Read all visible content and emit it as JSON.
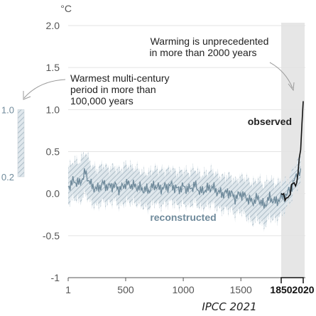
{
  "chart_data": {
    "type": "line",
    "unit": "°C",
    "ylim": [
      -1,
      2
    ],
    "xlim": [
      1,
      2020
    ],
    "y_ticks": [
      "2.0",
      "1.5",
      "1.0",
      "0.5",
      "0.0",
      "-0.5",
      "-1"
    ],
    "y_tick_values": [
      2.0,
      1.5,
      1.0,
      0.5,
      0.0,
      -0.5,
      -1.0
    ],
    "x_ticks": [
      "1",
      "500",
      "1000",
      "1500",
      "1850",
      "2020"
    ],
    "x_tick_values": [
      1,
      500,
      1000,
      1500,
      1850,
      2020
    ],
    "highlight_period": [
      1850,
      2020
    ],
    "annotations": {
      "unprecedented_line1": "Warming is unprecedented",
      "unprecedented_line2": "in more than 2000 years",
      "warmest_line1": "Warmest multi-century",
      "warmest_line2": "period in more than",
      "warmest_line3": "100,000 years"
    },
    "warmest_range": {
      "low_label": "0.2",
      "high_label": "1.0",
      "low": 0.2,
      "high": 1.0
    },
    "series": [
      {
        "name": "reconstructed",
        "x": [
          1,
          50,
          100,
          150,
          200,
          250,
          300,
          350,
          400,
          450,
          500,
          550,
          600,
          650,
          700,
          750,
          800,
          850,
          900,
          950,
          1000,
          1050,
          1100,
          1150,
          1200,
          1250,
          1300,
          1350,
          1400,
          1450,
          1500,
          1550,
          1600,
          1650,
          1700,
          1750,
          1800,
          1850,
          1900,
          1950,
          2000
        ],
        "y": [
          0.08,
          0.15,
          0.12,
          0.25,
          0.1,
          0.05,
          0.12,
          0.08,
          0.1,
          0.05,
          0.12,
          0.1,
          0.08,
          0.05,
          0.04,
          0.1,
          0.06,
          0.08,
          0.1,
          0.05,
          0.08,
          0.05,
          0.1,
          0.02,
          0.05,
          0.08,
          0.02,
          0.0,
          0.02,
          -0.05,
          0.0,
          -0.05,
          -0.1,
          -0.05,
          -0.15,
          -0.05,
          -0.1,
          -0.05,
          0.0,
          0.15,
          0.3
        ],
        "band_low": [
          -0.12,
          -0.05,
          -0.1,
          0.0,
          -0.12,
          -0.15,
          -0.1,
          -0.12,
          -0.08,
          -0.15,
          -0.1,
          -0.1,
          -0.12,
          -0.15,
          -0.18,
          -0.1,
          -0.15,
          -0.12,
          -0.1,
          -0.15,
          -0.12,
          -0.15,
          -0.1,
          -0.18,
          -0.15,
          -0.12,
          -0.18,
          -0.2,
          -0.18,
          -0.25,
          -0.2,
          -0.28,
          -0.35,
          -0.3,
          -0.4,
          -0.28,
          -0.32,
          -0.25,
          -0.15,
          0.0,
          0.15
        ],
        "band_high": [
          0.3,
          0.4,
          0.38,
          0.5,
          0.35,
          0.28,
          0.35,
          0.3,
          0.32,
          0.28,
          0.35,
          0.32,
          0.3,
          0.25,
          0.25,
          0.3,
          0.28,
          0.28,
          0.3,
          0.25,
          0.28,
          0.25,
          0.3,
          0.22,
          0.25,
          0.28,
          0.22,
          0.2,
          0.22,
          0.15,
          0.2,
          0.18,
          0.12,
          0.18,
          0.1,
          0.18,
          0.12,
          0.15,
          0.15,
          0.32,
          0.45
        ]
      },
      {
        "name": "observed",
        "x": [
          1850,
          1860,
          1870,
          1880,
          1890,
          1900,
          1910,
          1920,
          1930,
          1940,
          1950,
          1960,
          1970,
          1980,
          1990,
          2000,
          2010,
          2020
        ],
        "y": [
          0.0,
          0.02,
          -0.03,
          -0.05,
          -0.08,
          -0.02,
          -0.06,
          0.02,
          0.08,
          0.15,
          0.1,
          0.12,
          0.1,
          0.28,
          0.4,
          0.55,
          0.8,
          1.1
        ]
      }
    ],
    "credit": "IPCC 2021"
  }
}
